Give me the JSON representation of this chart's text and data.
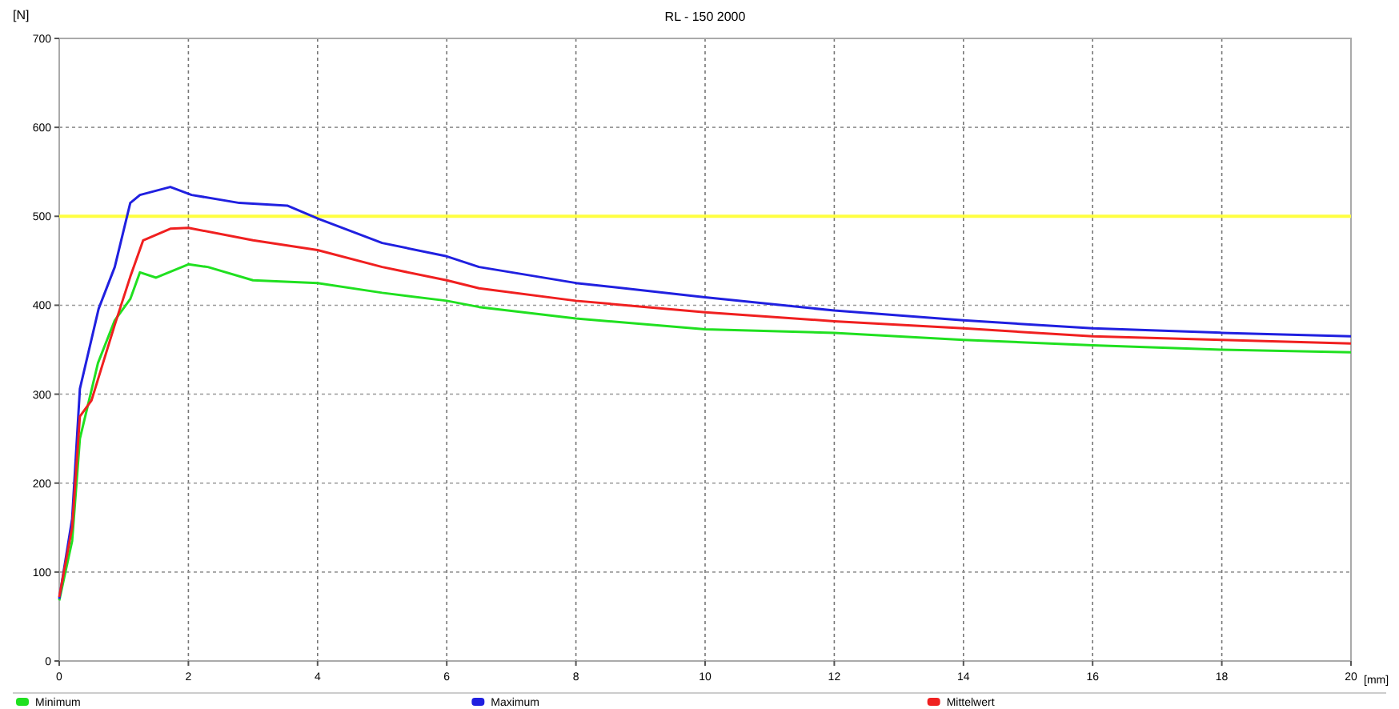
{
  "chart_data": {
    "type": "line",
    "title": "RL - 150 2000",
    "xlabel": "[mm]",
    "ylabel": "[N]",
    "xlim": [
      0,
      20
    ],
    "xticks": [
      0,
      2,
      4,
      6,
      8,
      10,
      12,
      14,
      16,
      18,
      20
    ],
    "ylim": [
      0,
      700
    ],
    "yticks": [
      0,
      100,
      200,
      300,
      400,
      500,
      600,
      700
    ],
    "grid": true,
    "legend": "bottom",
    "line_style": "solid",
    "ref_lines": [
      {
        "axis": "y",
        "value": 500,
        "label": null,
        "color": "#ffff40"
      }
    ],
    "series": [
      {
        "name": "Minimum",
        "color": "#20e020",
        "x": [
          0,
          0.2,
          0.32,
          0.6,
          0.86,
          1.1,
          1.25,
          1.5,
          2,
          2.3,
          3,
          4,
          5,
          6,
          6.5,
          8,
          10,
          12,
          14,
          16,
          18,
          20
        ],
        "values": [
          68,
          135,
          250,
          335,
          383,
          407,
          437,
          431,
          446,
          443,
          428,
          425,
          414,
          405,
          398,
          385,
          373,
          369,
          361,
          355,
          350,
          347
        ]
      },
      {
        "name": "Maximum",
        "color": "#2020e0",
        "x": [
          0,
          0.2,
          0.32,
          0.61,
          0.86,
          1.1,
          1.25,
          1.72,
          2.05,
          2.79,
          3.53,
          4.02,
          5,
          6,
          6.5,
          8,
          10,
          12,
          14,
          16,
          18,
          20
        ],
        "values": [
          70,
          160,
          306,
          396,
          443,
          515,
          524,
          533,
          524,
          515,
          512,
          497,
          470,
          455,
          443,
          425,
          409,
          394,
          383,
          374,
          369,
          365
        ]
      },
      {
        "name": "Mittelwert",
        "color": "#f02020",
        "x": [
          0,
          0.2,
          0.32,
          0.5,
          0.86,
          1.1,
          1.3,
          1.72,
          2,
          3,
          4,
          5,
          6,
          6.5,
          8,
          10,
          12,
          14,
          16,
          18,
          20
        ],
        "values": [
          72,
          150,
          275,
          293,
          378,
          432,
          473,
          486,
          487,
          473,
          462,
          443,
          428,
          419,
          405,
          392,
          382,
          374,
          365,
          361,
          357
        ]
      }
    ]
  }
}
